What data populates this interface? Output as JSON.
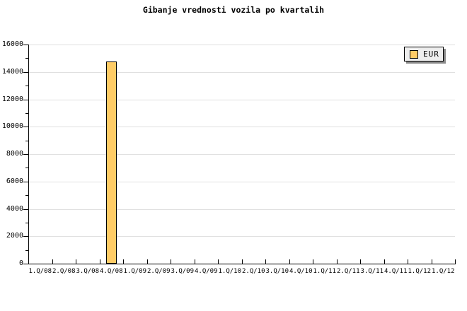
{
  "title": "Gibanje vrednosti vozila po kvartalih",
  "legend": {
    "items": [
      {
        "label": "EUR",
        "color": "#FFCC66"
      }
    ]
  },
  "chart_data": {
    "type": "bar",
    "title": "Gibanje vrednosti vozila po kvartalih",
    "xlabel": "",
    "ylabel": "",
    "categories": [
      "1.Q/08",
      "2.Q/08",
      "3.Q/08",
      "4.Q/08",
      "1.Q/09",
      "2.Q/09",
      "3.Q/09",
      "4.Q/09",
      "1.Q/10",
      "2.Q/10",
      "3.Q/10",
      "4.Q/10",
      "1.Q/11",
      "2.Q/11",
      "3.Q/11",
      "4.Q/11",
      "1.Q/12",
      "1.Q/12"
    ],
    "series": [
      {
        "name": "EUR",
        "color": "#FFCC66",
        "border_color": "#000000",
        "values": [
          null,
          null,
          null,
          14780,
          null,
          null,
          null,
          null,
          null,
          null,
          null,
          null,
          null,
          null,
          null,
          null,
          null,
          null
        ]
      }
    ],
    "ylim": [
      0,
      16000
    ],
    "y_major_step": 2000,
    "y_minor_step": 1000,
    "y_tick_labels": [
      "0",
      "2000",
      "4000",
      "6000",
      "8000",
      "10000",
      "12000",
      "14000",
      "16000"
    ],
    "grid": "horizontal-major",
    "gridline_color": "#E0E0E0",
    "axis_color": "#000000",
    "legend_position": "top-right",
    "legend_background": "#EEEEEE",
    "legend_shadow": "#8C8C8C",
    "background": "#FFFFFF"
  }
}
